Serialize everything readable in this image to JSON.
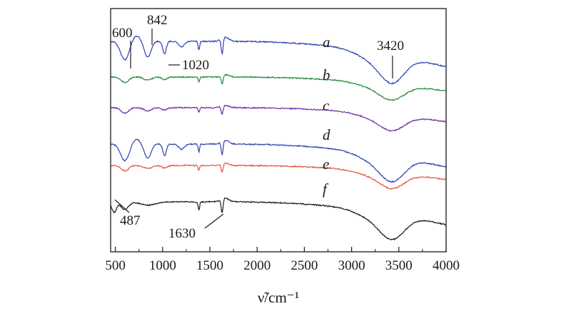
{
  "chart_data": {
    "type": "line",
    "xlabel": "ν̃/cm⁻¹",
    "xlim": [
      450,
      4000
    ],
    "x_ticks": [
      500,
      1000,
      1500,
      2000,
      2500,
      3000,
      3500,
      4000
    ],
    "y_axis_visible": false,
    "grid": false,
    "legend": "none (series labelled inline at right of curves)",
    "series": [
      {
        "name": "a",
        "color": "#2f3fb4"
      },
      {
        "name": "b",
        "color": "#1f8a3a"
      },
      {
        "name": "c",
        "color": "#6a2fa6"
      },
      {
        "name": "d",
        "color": "#2f3fb4"
      },
      {
        "name": "e",
        "color": "#e8553c"
      },
      {
        "name": "f",
        "color": "#1a1a1a"
      }
    ],
    "annotations": [
      {
        "text": "600",
        "x": 600
      },
      {
        "text": "842",
        "x": 842
      },
      {
        "text": "1020",
        "x": 1020
      },
      {
        "text": "3420",
        "x": 3420
      },
      {
        "text": "487",
        "x": 487
      },
      {
        "text": "1630",
        "x": 1630
      }
    ]
  }
}
